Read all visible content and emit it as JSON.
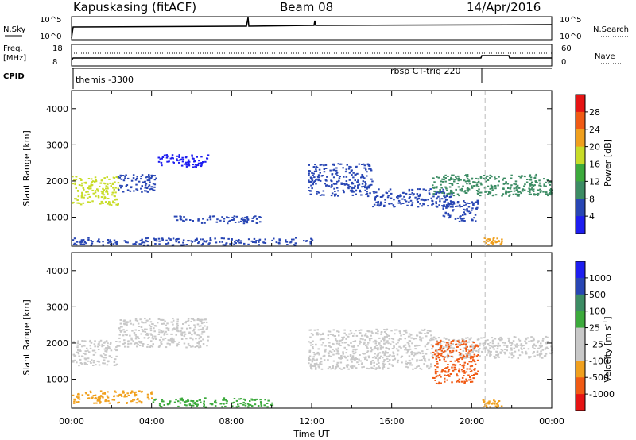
{
  "header": {
    "station": "Kapuskasing (fitACF)",
    "beam": "Beam 08",
    "date": "14/Apr/2016"
  },
  "strip": {
    "left_top": "N.Sky",
    "right_top": "N.Search",
    "left_mid_1": "Freq.",
    "left_mid_2": "[MHz]",
    "right_mid": "Nave",
    "left_bottom": "CPID",
    "top_ticks_left": [
      "10^5",
      "10^0"
    ],
    "top_ticks_right": [
      "10^5",
      "10^0"
    ],
    "mid_ticks_left": [
      "18",
      "8"
    ],
    "mid_ticks_right": [
      "60",
      "0"
    ],
    "cpid_1": "themis -3300",
    "cpid_2": "rbsp CT-trig 220"
  },
  "colors": {
    "power": [
      "#1e1ef0",
      "#2846b4",
      "#3c8c64",
      "#3caa3c",
      "#c8dc28",
      "#f0a01e",
      "#f05a14",
      "#e61414"
    ],
    "velocity": [
      "#e61414",
      "#f05a14",
      "#f0a01e",
      "#c8c8c8",
      "#c8c8c8",
      "#3caa3c",
      "#3c8c64",
      "#2846b4",
      "#1e1ef0"
    ],
    "velocity_gray": "#c8c8c8"
  },
  "chart_data": [
    {
      "type": "heatmap",
      "quantity": "Power",
      "xlabel": "",
      "ylabel": "Slant Range [km]",
      "x_range_hours": [
        0,
        24
      ],
      "ylim": [
        200,
        4500
      ],
      "y_ticks": [
        "1000",
        "2000",
        "3000",
        "4000"
      ],
      "colorbar_label": "Power [dB]",
      "colorbar_ticks": [
        "4",
        "8",
        "12",
        "16",
        "20",
        "24",
        "28"
      ],
      "echo_bands": [
        {
          "t0": 0.0,
          "t1": 2.3,
          "r0": 1350,
          "r1": 2150,
          "level": 20
        },
        {
          "t0": 2.3,
          "t1": 4.2,
          "r0": 1700,
          "r1": 2200,
          "level": 8
        },
        {
          "t0": 4.2,
          "t1": 6.8,
          "r0": 2400,
          "r1": 2750,
          "level": 4
        },
        {
          "t0": 11.8,
          "t1": 15.0,
          "r0": 1600,
          "r1": 2500,
          "level": 6
        },
        {
          "t0": 15.0,
          "t1": 19.0,
          "r0": 1300,
          "r1": 1800,
          "level": 6
        },
        {
          "t0": 18.0,
          "t1": 24.0,
          "r0": 1600,
          "r1": 2200,
          "level": 12
        },
        {
          "t0": 18.5,
          "t1": 20.3,
          "r0": 900,
          "r1": 1500,
          "level": 6
        },
        {
          "t0": 0.0,
          "t1": 12.0,
          "r0": 250,
          "r1": 450,
          "level": 8
        },
        {
          "t0": 5.0,
          "t1": 9.5,
          "r0": 850,
          "r1": 1050,
          "level": 6
        },
        {
          "t0": 20.5,
          "t1": 21.5,
          "r0": 250,
          "r1": 450,
          "level": 24
        }
      ]
    },
    {
      "type": "heatmap",
      "quantity": "Velocity",
      "xlabel": "Time UT",
      "ylabel": "Slant Range [km]",
      "x_range_hours": [
        0,
        24
      ],
      "x_ticks": [
        "00:00",
        "04:00",
        "08:00",
        "12:00",
        "16:00",
        "20:00",
        "00:00"
      ],
      "ylim": [
        200,
        4500
      ],
      "y_ticks": [
        "1000",
        "2000",
        "3000",
        "4000"
      ],
      "colorbar_label": "Velocity [m s^-1]",
      "colorbar_ticks": [
        "1000",
        "500",
        "100",
        "25",
        "-25",
        "-100",
        "-500",
        "-1000"
      ],
      "echo_bands": [
        {
          "t0": 0.0,
          "t1": 2.3,
          "r0": 1400,
          "r1": 2100,
          "v": 0
        },
        {
          "t0": 2.3,
          "t1": 6.8,
          "r0": 1900,
          "r1": 2700,
          "v": 0
        },
        {
          "t0": 11.8,
          "t1": 18.0,
          "r0": 1300,
          "r1": 2400,
          "v": 0
        },
        {
          "t0": 18.0,
          "t1": 24.0,
          "r0": 1600,
          "r1": 2200,
          "v": 0
        },
        {
          "t0": 18.0,
          "t1": 20.3,
          "r0": 900,
          "r1": 2100,
          "v": -500
        },
        {
          "t0": 4.0,
          "t1": 10.0,
          "r0": 250,
          "r1": 500,
          "v": 100
        },
        {
          "t0": 0.0,
          "t1": 4.0,
          "r0": 350,
          "r1": 700,
          "v": -100
        },
        {
          "t0": 20.5,
          "t1": 21.5,
          "r0": 250,
          "r1": 450,
          "v": -100
        }
      ]
    }
  ]
}
